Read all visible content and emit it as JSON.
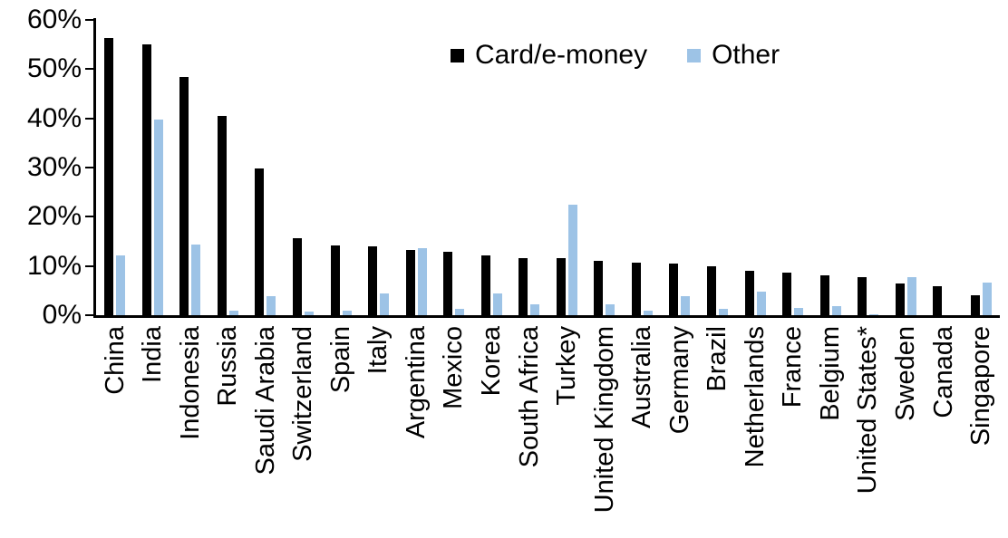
{
  "chart_data": {
    "type": "bar",
    "title": "",
    "xlabel": "",
    "ylabel": "",
    "ylim": [
      0,
      60
    ],
    "ytick_step": 10,
    "ytick_labels": [
      "0%",
      "10%",
      "20%",
      "30%",
      "40%",
      "50%",
      "60%"
    ],
    "grid": false,
    "legend_position": "top-center",
    "categories": [
      "China",
      "India",
      "Indonesia",
      "Russia",
      "Saudi Arabia",
      "Switzerland",
      "Spain",
      "Italy",
      "Argentina",
      "Mexico",
      "Korea",
      "South Africa",
      "Turkey",
      "United Kingdom",
      "Australia",
      "Germany",
      "Brazil",
      "Netherlands",
      "France",
      "Belgium",
      "United States*",
      "Sweden",
      "Canada",
      "Singapore"
    ],
    "series": [
      {
        "name": "Card/e-money",
        "color": "#000000",
        "values": [
          56.4,
          55.1,
          48.4,
          40.4,
          29.8,
          15.6,
          14.1,
          14.0,
          13.3,
          12.8,
          12.2,
          11.6,
          11.6,
          11.0,
          10.7,
          10.5,
          10.0,
          9.1,
          8.6,
          8.1,
          7.8,
          6.4,
          5.8,
          4.0
        ]
      },
      {
        "name": "Other",
        "color": "#9DC3E6",
        "values": [
          12.2,
          39.8,
          14.4,
          1.0,
          3.8,
          0.8,
          1.0,
          4.4,
          13.7,
          1.3,
          4.5,
          2.2,
          22.4,
          2.2,
          1.0,
          3.8,
          1.2,
          4.7,
          1.4,
          1.9,
          0.2,
          7.8,
          0,
          6.6
        ]
      }
    ]
  }
}
